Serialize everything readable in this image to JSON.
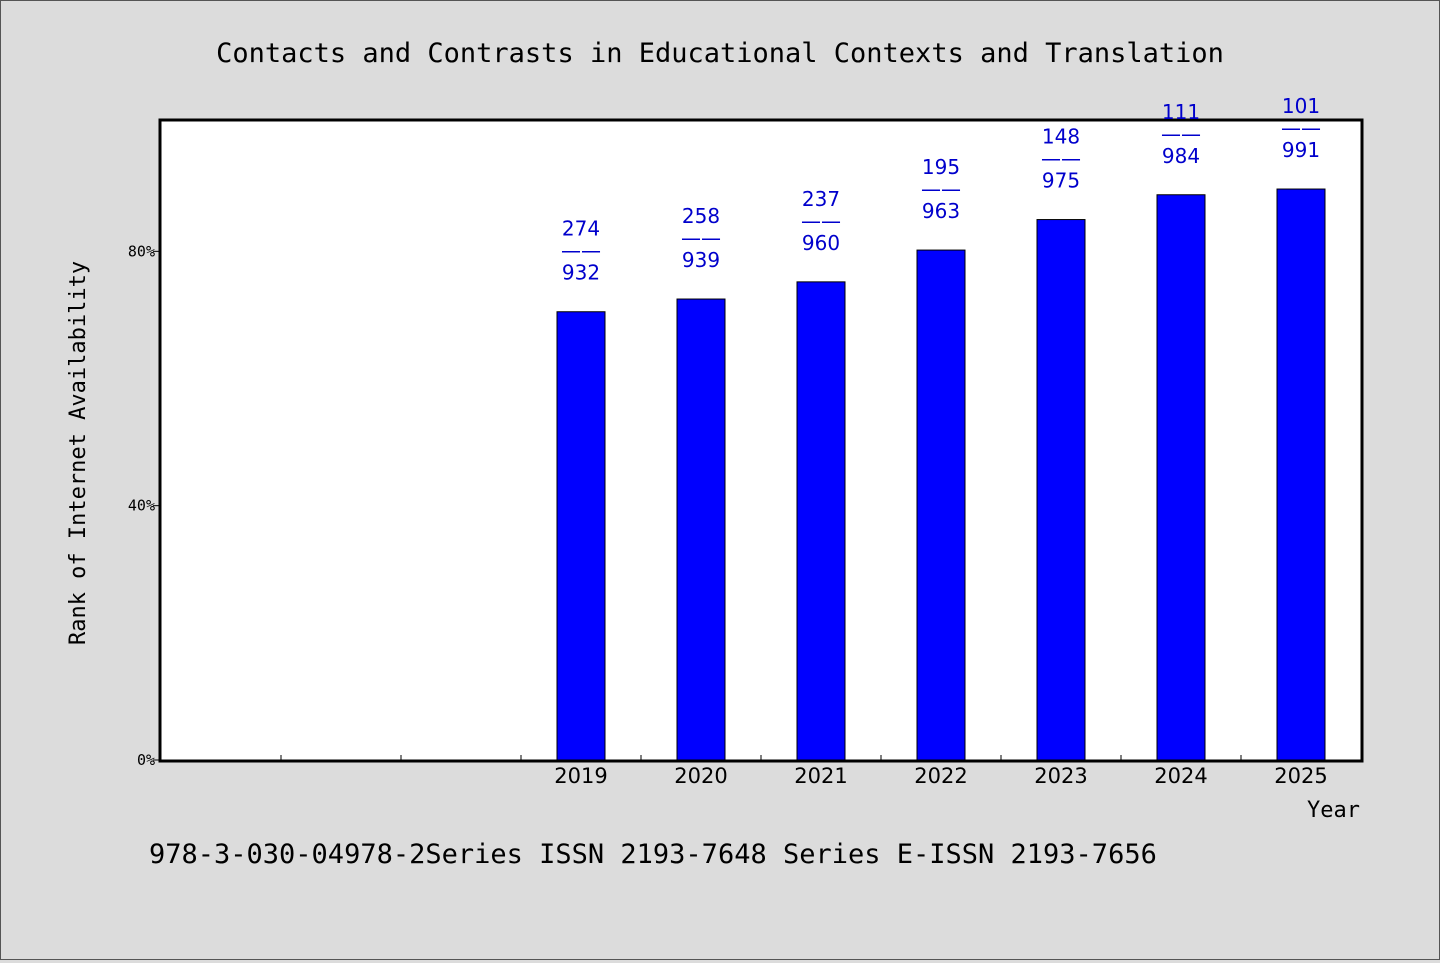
{
  "chart_data": {
    "type": "bar",
    "title": "Contacts and Contrasts in Educational Contexts and Translation",
    "xlabel": "Year",
    "ylabel": "Rank of Internet Availability",
    "categories": [
      "",
      "",
      "",
      "2019",
      "2020",
      "2021",
      "2022",
      "2023",
      "2024",
      "2025"
    ],
    "values": [
      null,
      null,
      null,
      70.5,
      72.5,
      75.2,
      80.2,
      85.0,
      88.9,
      89.8
    ],
    "data_labels": [
      null,
      null,
      null,
      [
        "274",
        "——",
        "932"
      ],
      [
        "258",
        "——",
        "939"
      ],
      [
        "237",
        "——",
        "960"
      ],
      [
        "195",
        "——",
        "963"
      ],
      [
        "148",
        "——",
        "975"
      ],
      [
        "111",
        "——",
        "984"
      ],
      [
        "101",
        "——",
        "991"
      ]
    ],
    "yticks": [
      {
        "value": 0,
        "label": "0%"
      },
      {
        "value": 40,
        "label": "40%"
      },
      {
        "value": 80,
        "label": "80%"
      }
    ],
    "ylim": [
      0,
      100.5
    ],
    "bar_color": "#0000ff",
    "label_color": "#0000cc",
    "grid": false,
    "legend": "none"
  },
  "footer": "978-3-030-04978-2Series ISSN 2193-7648 Series E-ISSN 2193-7656"
}
